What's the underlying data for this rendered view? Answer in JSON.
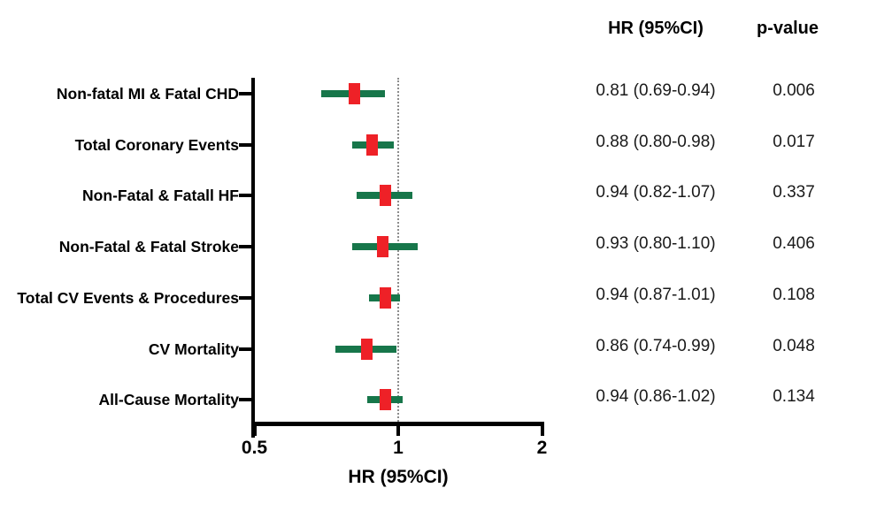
{
  "chart_data": {
    "type": "forest",
    "hr_col_header": "HR (95%CI)",
    "p_col_header": "p-value",
    "xlabel": "HR (95%CI)",
    "x_scale": "log",
    "x_ticks": [
      0.5,
      1,
      2
    ],
    "x_tick_labels": [
      "0.5",
      "1",
      "2"
    ],
    "xlim": [
      0.5,
      2
    ],
    "reference_line": 1,
    "rows": [
      {
        "label": "Non-fatal MI & Fatal CHD",
        "hr": 0.81,
        "ci_low": 0.69,
        "ci_high": 0.94,
        "hr_text": "0.81 (0.69-0.94)",
        "p_text": "0.006"
      },
      {
        "label": "Total Coronary Events",
        "hr": 0.88,
        "ci_low": 0.8,
        "ci_high": 0.98,
        "hr_text": "0.88 (0.80-0.98)",
        "p_text": "0.017"
      },
      {
        "label": "Non-Fatal & Fatall HF",
        "hr": 0.94,
        "ci_low": 0.82,
        "ci_high": 1.07,
        "hr_text": "0.94 (0.82-1.07)",
        "p_text": "0.337"
      },
      {
        "label": "Non-Fatal & Fatal Stroke",
        "hr": 0.93,
        "ci_low": 0.8,
        "ci_high": 1.1,
        "hr_text": "0.93 (0.80-1.10)",
        "p_text": "0.406"
      },
      {
        "label": "Total CV Events & Procedures",
        "hr": 0.94,
        "ci_low": 0.87,
        "ci_high": 1.01,
        "hr_text": "0.94 (0.87-1.01)",
        "p_text": "0.108"
      },
      {
        "label": "CV Mortality",
        "hr": 0.86,
        "ci_low": 0.74,
        "ci_high": 0.99,
        "hr_text": "0.86 (0.74-0.99)",
        "p_text": "0.048"
      },
      {
        "label": "All-Cause Mortality",
        "hr": 0.94,
        "ci_low": 0.86,
        "ci_high": 1.02,
        "hr_text": "0.94 (0.86-1.02)",
        "p_text": "0.134"
      }
    ],
    "colors": {
      "ci_bar": "#17764a",
      "marker": "#ee2127",
      "axis": "#000000",
      "reference_line": "#8c8c8c"
    }
  }
}
